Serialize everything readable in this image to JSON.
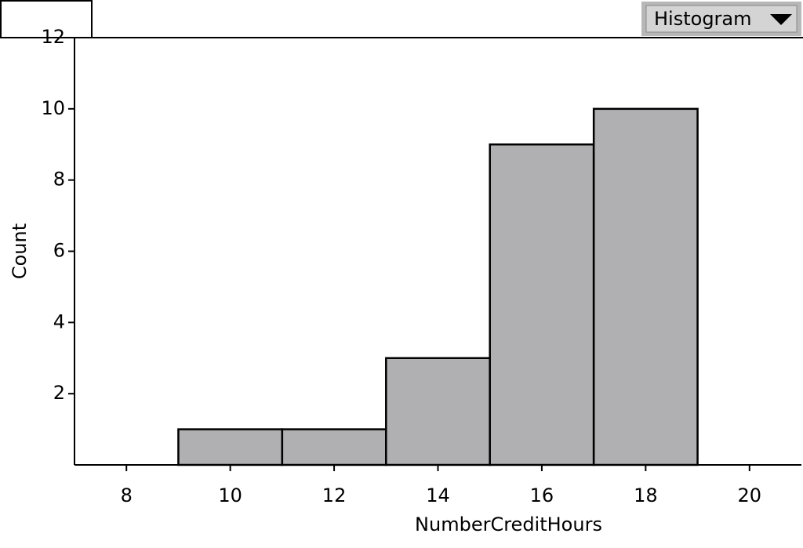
{
  "menu": {
    "label": "Histogram"
  },
  "chart_data": {
    "type": "histogram",
    "bins": [
      9,
      11,
      13,
      15,
      17,
      19
    ],
    "values": [
      1,
      1,
      3,
      9,
      10
    ],
    "color": "#b0b0b2",
    "xlabel": "NumberCreditHours",
    "ylabel": "Count",
    "xlim": [
      7,
      21
    ],
    "ylim": [
      0,
      12
    ],
    "xticks": [
      8,
      10,
      12,
      14,
      16,
      18,
      20
    ],
    "yticks": [
      2,
      4,
      6,
      8,
      10,
      12
    ]
  }
}
